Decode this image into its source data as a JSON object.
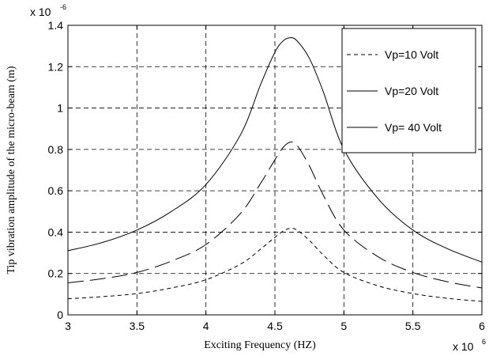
{
  "chart_data": {
    "type": "line",
    "title": "",
    "xlabel": "Exciting Frequency (HZ)",
    "ylabel": "Tip vibration amplitude of  the micro-beam (m)",
    "x_exponent": {
      "base": "x 10",
      "power": "6"
    },
    "y_exponent": {
      "base": "x 10",
      "power": "-6"
    },
    "xlim": [
      3,
      6
    ],
    "ylim": [
      0,
      1.4
    ],
    "x_ticks": [
      "3",
      "3.5",
      "4",
      "4.5",
      "5",
      "5.5",
      "6"
    ],
    "y_ticks": [
      "0",
      "0.2",
      "0.4",
      "0.6",
      "0.8",
      "1",
      "1.2",
      "1.4"
    ],
    "grid": true,
    "legend_position": "top-right",
    "x": [
      3.0,
      3.25,
      3.5,
      3.75,
      4.0,
      4.25,
      4.4,
      4.5,
      4.56,
      4.61,
      4.66,
      4.75,
      4.85,
      5.0,
      5.25,
      5.5,
      5.75,
      6.0
    ],
    "series": [
      {
        "name": "Vp=10 Volt",
        "style": "dashed",
        "color": "#000000",
        "values": [
          0.078,
          0.088,
          0.103,
          0.13,
          0.17,
          0.245,
          0.32,
          0.375,
          0.405,
          0.418,
          0.41,
          0.36,
          0.29,
          0.205,
          0.14,
          0.103,
          0.08,
          0.065
        ]
      },
      {
        "name": "Vp=20 Volt",
        "style": "long-dash",
        "color": "#000000",
        "values": [
          0.155,
          0.175,
          0.205,
          0.26,
          0.34,
          0.49,
          0.64,
          0.75,
          0.81,
          0.835,
          0.82,
          0.72,
          0.58,
          0.41,
          0.28,
          0.205,
          0.16,
          0.13
        ]
      },
      {
        "name": "Vp= 40 Volt",
        "style": "solid",
        "color": "#000000",
        "values": [
          0.31,
          0.35,
          0.41,
          0.5,
          0.63,
          0.87,
          1.12,
          1.27,
          1.325,
          1.34,
          1.325,
          1.24,
          1.08,
          0.8,
          0.56,
          0.41,
          0.32,
          0.255
        ]
      }
    ]
  }
}
